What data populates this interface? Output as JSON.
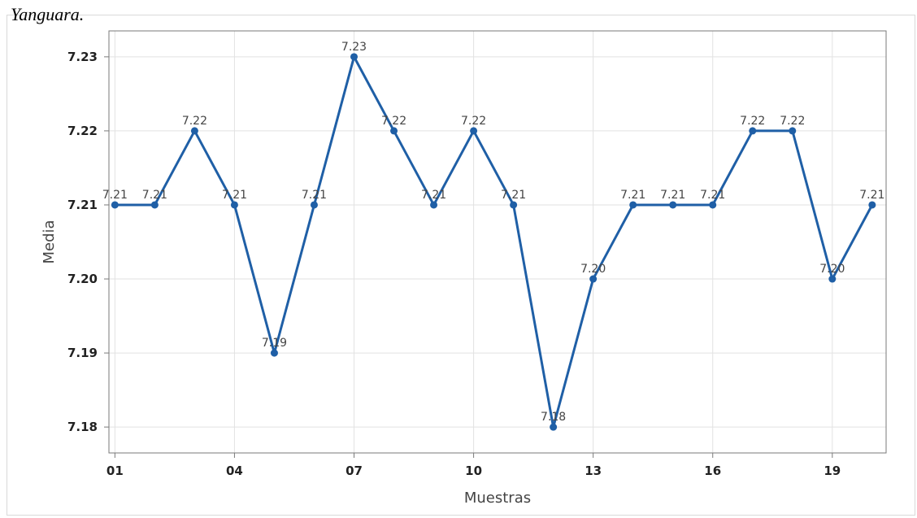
{
  "caption": "Yanguara.",
  "chart_data": {
    "type": "line",
    "title": "",
    "xlabel": "Muestras",
    "ylabel": "Media",
    "ylim": [
      7.1765,
      7.2335
    ],
    "yticks": [
      7.18,
      7.19,
      7.2,
      7.21,
      7.22,
      7.23
    ],
    "ytick_labels": [
      "7.18",
      "7.19",
      "7.20",
      "7.21",
      "7.22",
      "7.23"
    ],
    "x": [
      1,
      2,
      3,
      4,
      5,
      6,
      7,
      8,
      9,
      10,
      11,
      12,
      13,
      14,
      15,
      16,
      17,
      18,
      19,
      20
    ],
    "xlim": [
      0.85,
      20.35
    ],
    "xticks": [
      1,
      4,
      7,
      10,
      13,
      16,
      19
    ],
    "xtick_labels": [
      "01",
      "04",
      "07",
      "10",
      "13",
      "16",
      "19"
    ],
    "grid": true,
    "series": [
      {
        "values": [
          7.21,
          7.21,
          7.22,
          7.21,
          7.19,
          7.21,
          7.23,
          7.22,
          7.21,
          7.22,
          7.21,
          7.18,
          7.2,
          7.21,
          7.21,
          7.21,
          7.22,
          7.22,
          7.2,
          7.21
        ],
        "data_labels": [
          "7.21",
          "7.21",
          "7.22",
          "7.21",
          "7.19",
          "7.21",
          "7.23",
          "7.22",
          "7.21",
          "7.22",
          "7.21",
          "7.18",
          "7.20",
          "7.21",
          "7.21",
          "7.21",
          "7.22",
          "7.22",
          "7.20",
          "7.21"
        ],
        "color": "#1f5fa6"
      }
    ],
    "colors": {
      "line": "#1f5fa6",
      "grid": "#e2e2e2",
      "plot_border": "#7a7a7a"
    }
  }
}
